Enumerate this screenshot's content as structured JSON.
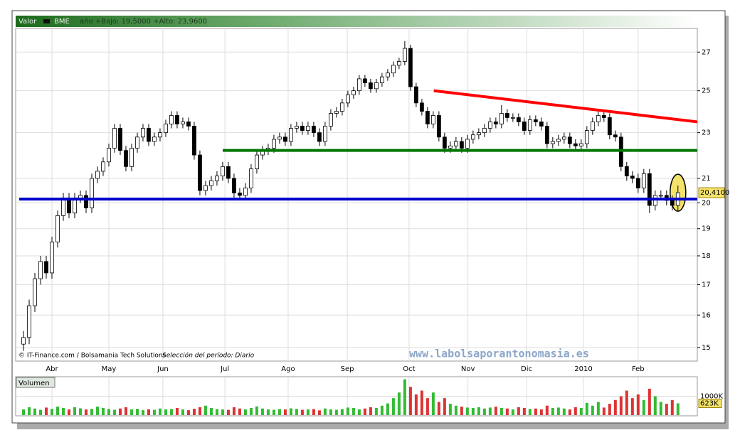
{
  "chart_data": [
    {
      "type": "candlestick",
      "label": "Valor",
      "title": "BME",
      "subtitle": "año +Bajo: 19,5000 +Alto: 23,9600",
      "source": "© IT-Finance.com / Bolsamania Tech Solutions",
      "period": "Selección del período: Diario",
      "watermark": "www.labolsaporantonomasia.es",
      "log_scale": true,
      "grid": true,
      "up_color": "#ffffff",
      "down_color": "#000000",
      "xlim": [
        -0.75,
        118.4
      ],
      "xticks": [
        {
          "value": 5,
          "label": "Abr"
        },
        {
          "value": 15,
          "label": "May"
        },
        {
          "value": 24.5,
          "label": "Jun"
        },
        {
          "value": 35.4,
          "label": "Jul"
        },
        {
          "value": 46.5,
          "label": "Ago"
        },
        {
          "value": 56.9,
          "label": "Sep"
        },
        {
          "value": 67.75,
          "label": "Oct"
        },
        {
          "value": 78.1,
          "label": "Nov"
        },
        {
          "value": 88.4,
          "label": "Dic"
        },
        {
          "value": 98.4,
          "label": "2010"
        },
        {
          "value": 108,
          "label": "Feb"
        }
      ],
      "ylim": [
        14.6,
        28.3
      ],
      "yticks": [
        15,
        16,
        17,
        18,
        19,
        20,
        21,
        23,
        25,
        27
      ],
      "open": [
        15.1,
        15.3,
        16.3,
        17.2,
        17.8,
        17.4,
        18.5,
        19.5,
        20.2,
        19.6,
        20.2,
        20.3,
        19.8,
        21.0,
        21.3,
        21.7,
        22.3,
        23.2,
        22.2,
        21.5,
        22.3,
        22.8,
        23.2,
        22.6,
        22.8,
        23.0,
        23.4,
        23.8,
        23.4,
        23.5,
        23.3,
        22.0,
        20.5,
        20.7,
        20.9,
        21.1,
        21.5,
        21.0,
        20.4,
        20.3,
        20.6,
        21.4,
        22.0,
        22.2,
        22.3,
        22.7,
        22.8,
        22.6,
        23.2,
        23.3,
        23.1,
        23.3,
        23.0,
        22.6,
        23.3,
        23.9,
        24.0,
        24.4,
        24.8,
        25.0,
        25.6,
        25.4,
        25.1,
        25.4,
        25.7,
        25.9,
        26.3,
        26.5,
        27.2,
        25.2,
        24.4,
        24.0,
        23.4,
        23.8,
        22.8,
        22.3,
        22.4,
        22.6,
        22.3,
        22.7,
        22.9,
        23.0,
        23.2,
        23.5,
        23.4,
        23.9,
        23.7,
        23.7,
        23.5,
        23.1,
        23.6,
        23.5,
        23.3,
        22.5,
        22.6,
        22.7,
        22.8,
        22.5,
        22.4,
        22.5,
        23.1,
        23.5,
        23.8,
        23.7,
        22.9,
        22.8,
        21.5,
        21.1,
        21.0,
        20.6,
        21.2,
        19.9,
        20.3,
        20.3,
        20.1,
        19.9
      ],
      "high": [
        15.5,
        16.5,
        17.4,
        18.0,
        18.0,
        18.7,
        19.7,
        20.4,
        20.4,
        20.4,
        20.5,
        20.5,
        21.2,
        21.5,
        21.9,
        22.5,
        23.4,
        23.4,
        22.4,
        22.5,
        23.0,
        23.4,
        23.4,
        23.0,
        23.2,
        23.6,
        24.0,
        24.0,
        23.7,
        23.7,
        23.5,
        22.2,
        20.9,
        21.1,
        21.3,
        21.7,
        21.7,
        21.2,
        20.6,
        20.8,
        21.6,
        22.2,
        22.4,
        22.5,
        22.9,
        23.0,
        23.0,
        23.4,
        23.5,
        23.5,
        23.5,
        23.5,
        23.2,
        23.5,
        24.1,
        24.2,
        24.6,
        25.0,
        25.2,
        25.8,
        25.8,
        25.6,
        25.6,
        25.9,
        26.1,
        26.5,
        26.7,
        27.6,
        27.4,
        25.4,
        24.6,
        24.2,
        24.0,
        24.0,
        23.0,
        22.6,
        22.8,
        22.8,
        22.9,
        23.1,
        23.2,
        23.4,
        23.7,
        23.7,
        24.3,
        24.1,
        23.9,
        23.9,
        23.7,
        23.8,
        23.8,
        23.7,
        23.5,
        22.8,
        22.9,
        23.0,
        23.0,
        22.7,
        22.7,
        23.3,
        23.7,
        24.0,
        24.0,
        23.9,
        23.1,
        23.0,
        21.7,
        21.3,
        21.2,
        21.4,
        21.4,
        20.5,
        20.5,
        20.5,
        20.3,
        20.7
      ],
      "low": [
        14.9,
        15.1,
        16.1,
        17.0,
        17.2,
        17.2,
        18.3,
        19.3,
        19.4,
        19.4,
        20.0,
        19.6,
        19.6,
        20.8,
        21.1,
        21.5,
        22.1,
        22.0,
        21.3,
        21.3,
        22.1,
        22.6,
        22.4,
        22.4,
        22.6,
        22.8,
        23.2,
        23.2,
        23.2,
        23.1,
        21.8,
        20.3,
        20.3,
        20.5,
        20.7,
        20.9,
        20.8,
        20.2,
        20.1,
        20.1,
        20.4,
        21.2,
        21.8,
        22.0,
        22.1,
        22.5,
        22.4,
        22.4,
        23.0,
        22.9,
        22.9,
        22.8,
        22.4,
        22.4,
        23.1,
        23.7,
        23.8,
        24.2,
        24.6,
        24.8,
        25.2,
        24.9,
        24.9,
        25.2,
        25.5,
        25.7,
        26.1,
        26.3,
        25.0,
        24.2,
        23.8,
        23.2,
        23.2,
        22.6,
        22.1,
        22.1,
        22.2,
        22.1,
        22.1,
        22.5,
        22.7,
        22.8,
        23.0,
        23.2,
        23.2,
        23.5,
        23.5,
        23.3,
        22.9,
        22.9,
        23.3,
        23.1,
        22.3,
        22.3,
        22.4,
        22.5,
        22.3,
        22.2,
        22.2,
        22.3,
        22.9,
        23.3,
        23.5,
        22.7,
        22.6,
        21.3,
        20.9,
        20.8,
        20.4,
        20.4,
        19.6,
        19.7,
        20.1,
        19.9,
        19.7,
        19.7
      ],
      "close": [
        15.3,
        16.3,
        17.2,
        17.8,
        17.4,
        18.5,
        19.5,
        20.2,
        19.6,
        20.2,
        20.3,
        19.8,
        21.0,
        21.3,
        21.7,
        22.3,
        23.2,
        22.2,
        21.5,
        22.3,
        22.8,
        23.2,
        22.6,
        22.8,
        23.0,
        23.4,
        23.8,
        23.4,
        23.5,
        23.3,
        22.0,
        20.5,
        20.7,
        20.9,
        21.1,
        21.5,
        21.0,
        20.4,
        20.3,
        20.6,
        21.4,
        22.0,
        22.2,
        22.3,
        22.7,
        22.8,
        22.6,
        23.2,
        23.3,
        23.1,
        23.3,
        23.0,
        22.6,
        23.3,
        23.9,
        24.0,
        24.4,
        24.8,
        25.0,
        25.6,
        25.4,
        25.1,
        25.4,
        25.7,
        25.9,
        26.3,
        26.5,
        27.2,
        25.2,
        24.4,
        24.0,
        23.4,
        23.8,
        22.8,
        22.3,
        22.4,
        22.6,
        22.3,
        22.7,
        22.9,
        23.0,
        23.2,
        23.5,
        23.4,
        23.9,
        23.7,
        23.7,
        23.5,
        23.1,
        23.6,
        23.5,
        23.3,
        22.5,
        22.6,
        22.7,
        22.8,
        22.5,
        22.4,
        22.5,
        23.1,
        23.5,
        23.8,
        23.7,
        22.9,
        22.8,
        21.5,
        21.1,
        21.0,
        20.6,
        21.2,
        19.9,
        20.3,
        20.3,
        20.1,
        19.9,
        20.41
      ],
      "last_label": "20,4100",
      "lines": [
        {
          "color": "#ff0000",
          "start": [
            72.1,
            25.0
          ],
          "end": [
            118.4,
            23.5
          ]
        },
        {
          "color": "#007700",
          "start": [
            35,
            22.2
          ],
          "end": [
            118.4,
            22.2
          ]
        },
        {
          "color": "#0000cc",
          "start": [
            -0.75,
            20.15
          ],
          "end": [
            118.4,
            20.15
          ]
        }
      ]
    },
    {
      "type": "bar",
      "title": "Volumen",
      "up_color": "#33bb33",
      "down_color": "#dd3333",
      "xlim": [
        -0.75,
        118.4
      ],
      "ylim": [
        0,
        2000
      ],
      "yticks": [
        {
          "value": 1000,
          "label": "1000K"
        }
      ],
      "values": [
        300,
        420,
        350,
        280,
        400,
        330,
        450,
        380,
        300,
        420,
        360,
        300,
        330,
        450,
        380,
        320,
        280,
        350,
        420,
        300,
        330,
        260,
        310,
        280,
        350,
        300,
        320,
        380,
        300,
        260,
        340,
        420,
        500,
        380,
        320,
        300,
        280,
        420,
        350,
        300,
        380,
        460,
        350,
        300,
        280,
        320,
        300,
        360,
        330,
        280,
        300,
        320,
        250,
        350,
        300,
        280,
        320,
        400,
        380,
        300,
        350,
        420,
        380,
        500,
        620,
        900,
        1200,
        1900,
        1500,
        1100,
        1300,
        900,
        1200,
        700,
        900,
        600,
        500,
        450,
        400,
        380,
        420,
        350,
        400,
        450,
        380,
        350,
        300,
        420,
        380,
        330,
        350,
        300,
        500,
        380,
        400,
        350,
        300,
        420,
        380,
        650,
        500,
        700,
        400,
        600,
        800,
        1000,
        1300,
        900,
        1100,
        800,
        1400,
        1000,
        700,
        600,
        800,
        623
      ],
      "last_label": "623K"
    }
  ]
}
